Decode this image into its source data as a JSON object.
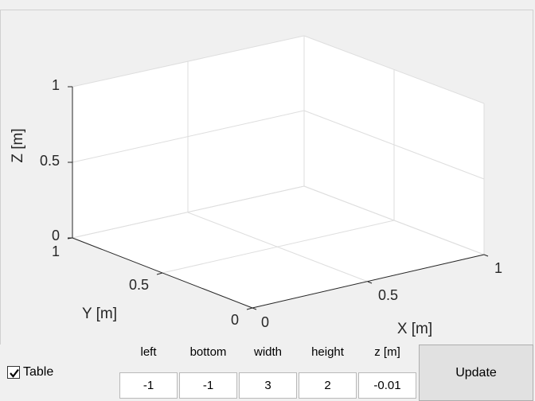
{
  "plot": {
    "axis_labels": {
      "x": "X [m]",
      "y": "Y [m]",
      "z": "Z [m]"
    },
    "z_ticks": [
      "0",
      "0.5",
      "1"
    ],
    "y_ticks": [
      "0",
      "0.5",
      "1"
    ],
    "x_ticks": [
      "0",
      "0.5",
      "1"
    ],
    "colors": {
      "background": "#ffffff",
      "grid": "#dedede",
      "axis": "#262626"
    }
  },
  "controls": {
    "table_checkbox": {
      "label": "Table",
      "checked": true
    },
    "fields": [
      {
        "label": "left",
        "value": "-1"
      },
      {
        "label": "bottom",
        "value": "-1"
      },
      {
        "label": "width",
        "value": "3"
      },
      {
        "label": "height",
        "value": "2"
      },
      {
        "label": "z [m]",
        "value": "-0.01"
      }
    ],
    "update_label": "Update"
  }
}
